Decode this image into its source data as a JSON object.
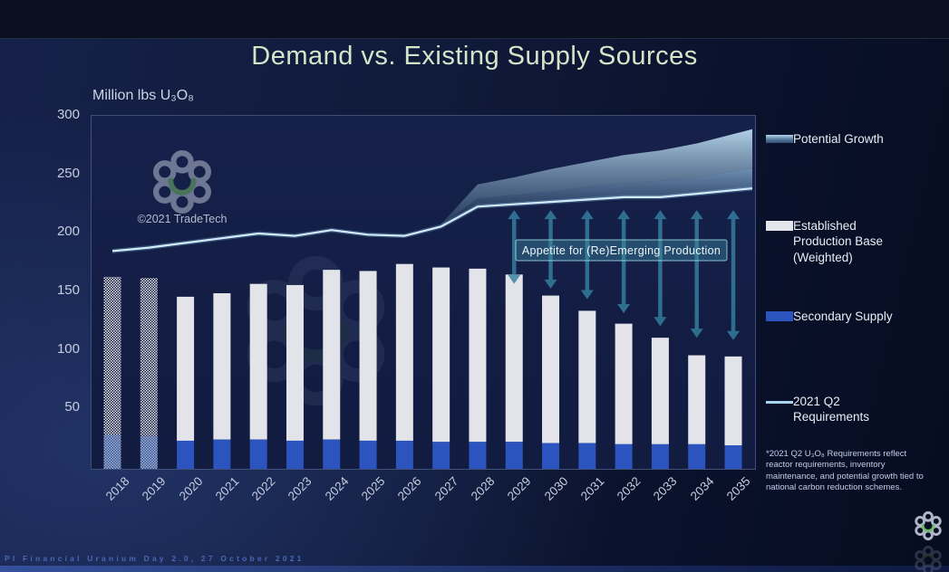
{
  "slide": {
    "title": "Demand vs. Existing Supply Sources",
    "footer": "PI Financial Uranium Day 2.0, 27 October 2021",
    "watermark_caption": "©2021 TradeTech",
    "annotation": "Appetite for (Re)Emerging Production",
    "footnote": "*2021 Q2 U₃O₈ Requirements reflect reactor requirements, inventory maintenance, and potential growth tied to national carbon reduction schemes."
  },
  "legend": {
    "items": [
      {
        "label": "Potential Growth",
        "swatch": "band"
      },
      {
        "label": "Established Production Base (Weighted)",
        "swatch": "white-bar"
      },
      {
        "label": "Secondary Supply",
        "swatch": "blue-bar"
      },
      {
        "label": "2021 Q2 Requirements",
        "swatch": "line"
      }
    ]
  },
  "colors": {
    "title_text": "#d3e6ca",
    "axis_text": "#c7cedf",
    "established_bar": "#e2e4e9",
    "secondary_bar": "#2b54bf",
    "requirements_line": "#d3ecfc",
    "band_light": "#b5d6eb",
    "arrow": "#35809e",
    "annotation_fill": "rgba(62,140,165,0.42)",
    "annotation_border": "rgba(165,225,240,0.8)",
    "footer_text": "#4a67b5"
  },
  "chart_data": {
    "type": "bar",
    "subtype": "stacked bars + line + potential-growth band",
    "title": "Demand vs. Existing Supply Sources",
    "ylabel": "Million lbs U₃O₈",
    "ylim": [
      0,
      300
    ],
    "yticks": [
      50,
      100,
      150,
      200,
      250,
      300
    ],
    "grid": false,
    "legend_position": "right",
    "categories": [
      "2018",
      "2019",
      "2020",
      "2021",
      "2022",
      "2023",
      "2024",
      "2025",
      "2026",
      "2027",
      "2028",
      "2029",
      "2030",
      "2031",
      "2032",
      "2033",
      "2034",
      "2035"
    ],
    "hatched_years": [
      "2018",
      "2019"
    ],
    "series": [
      {
        "id": "secondary",
        "name": "Secondary Supply",
        "type": "bar",
        "stack": true,
        "values": [
          29,
          28,
          24,
          25,
          25,
          24,
          25,
          24,
          24,
          23,
          23,
          23,
          22,
          22,
          21,
          21,
          21,
          20
        ]
      },
      {
        "id": "established",
        "name": "Established Production Base (Weighted)",
        "type": "bar",
        "stack": true,
        "values": [
          135,
          135,
          123,
          125,
          133,
          133,
          145,
          145,
          151,
          149,
          148,
          143,
          126,
          113,
          103,
          91,
          76,
          76
        ]
      },
      {
        "id": "requirements",
        "name": "2021 Q2 Requirements",
        "type": "line",
        "values": [
          186,
          189,
          193,
          197,
          201,
          199,
          204,
          200,
          199,
          207,
          224,
          226,
          228,
          230,
          232,
          232,
          235,
          238
        ]
      },
      {
        "id": "potential_mid",
        "name": "Potential Growth (lower band edge)",
        "type": "band-edge",
        "values": [
          null,
          null,
          null,
          null,
          null,
          null,
          null,
          null,
          null,
          207,
          231,
          234,
          237,
          241,
          244,
          246,
          249,
          254
        ]
      },
      {
        "id": "potential_upper",
        "name": "Potential Growth (upper band edge)",
        "type": "band-edge",
        "values": [
          null,
          null,
          null,
          null,
          null,
          null,
          null,
          null,
          null,
          209,
          243,
          249,
          256,
          262,
          268,
          272,
          278,
          286
        ]
      }
    ],
    "arrows": {
      "meaning": "gap between existing supply and requirements",
      "years": [
        "2029",
        "2030",
        "2031",
        "2032",
        "2033",
        "2034",
        "2035"
      ],
      "from_value": 221,
      "to_values": [
        158,
        154,
        145,
        133,
        122,
        112,
        110
      ]
    }
  }
}
